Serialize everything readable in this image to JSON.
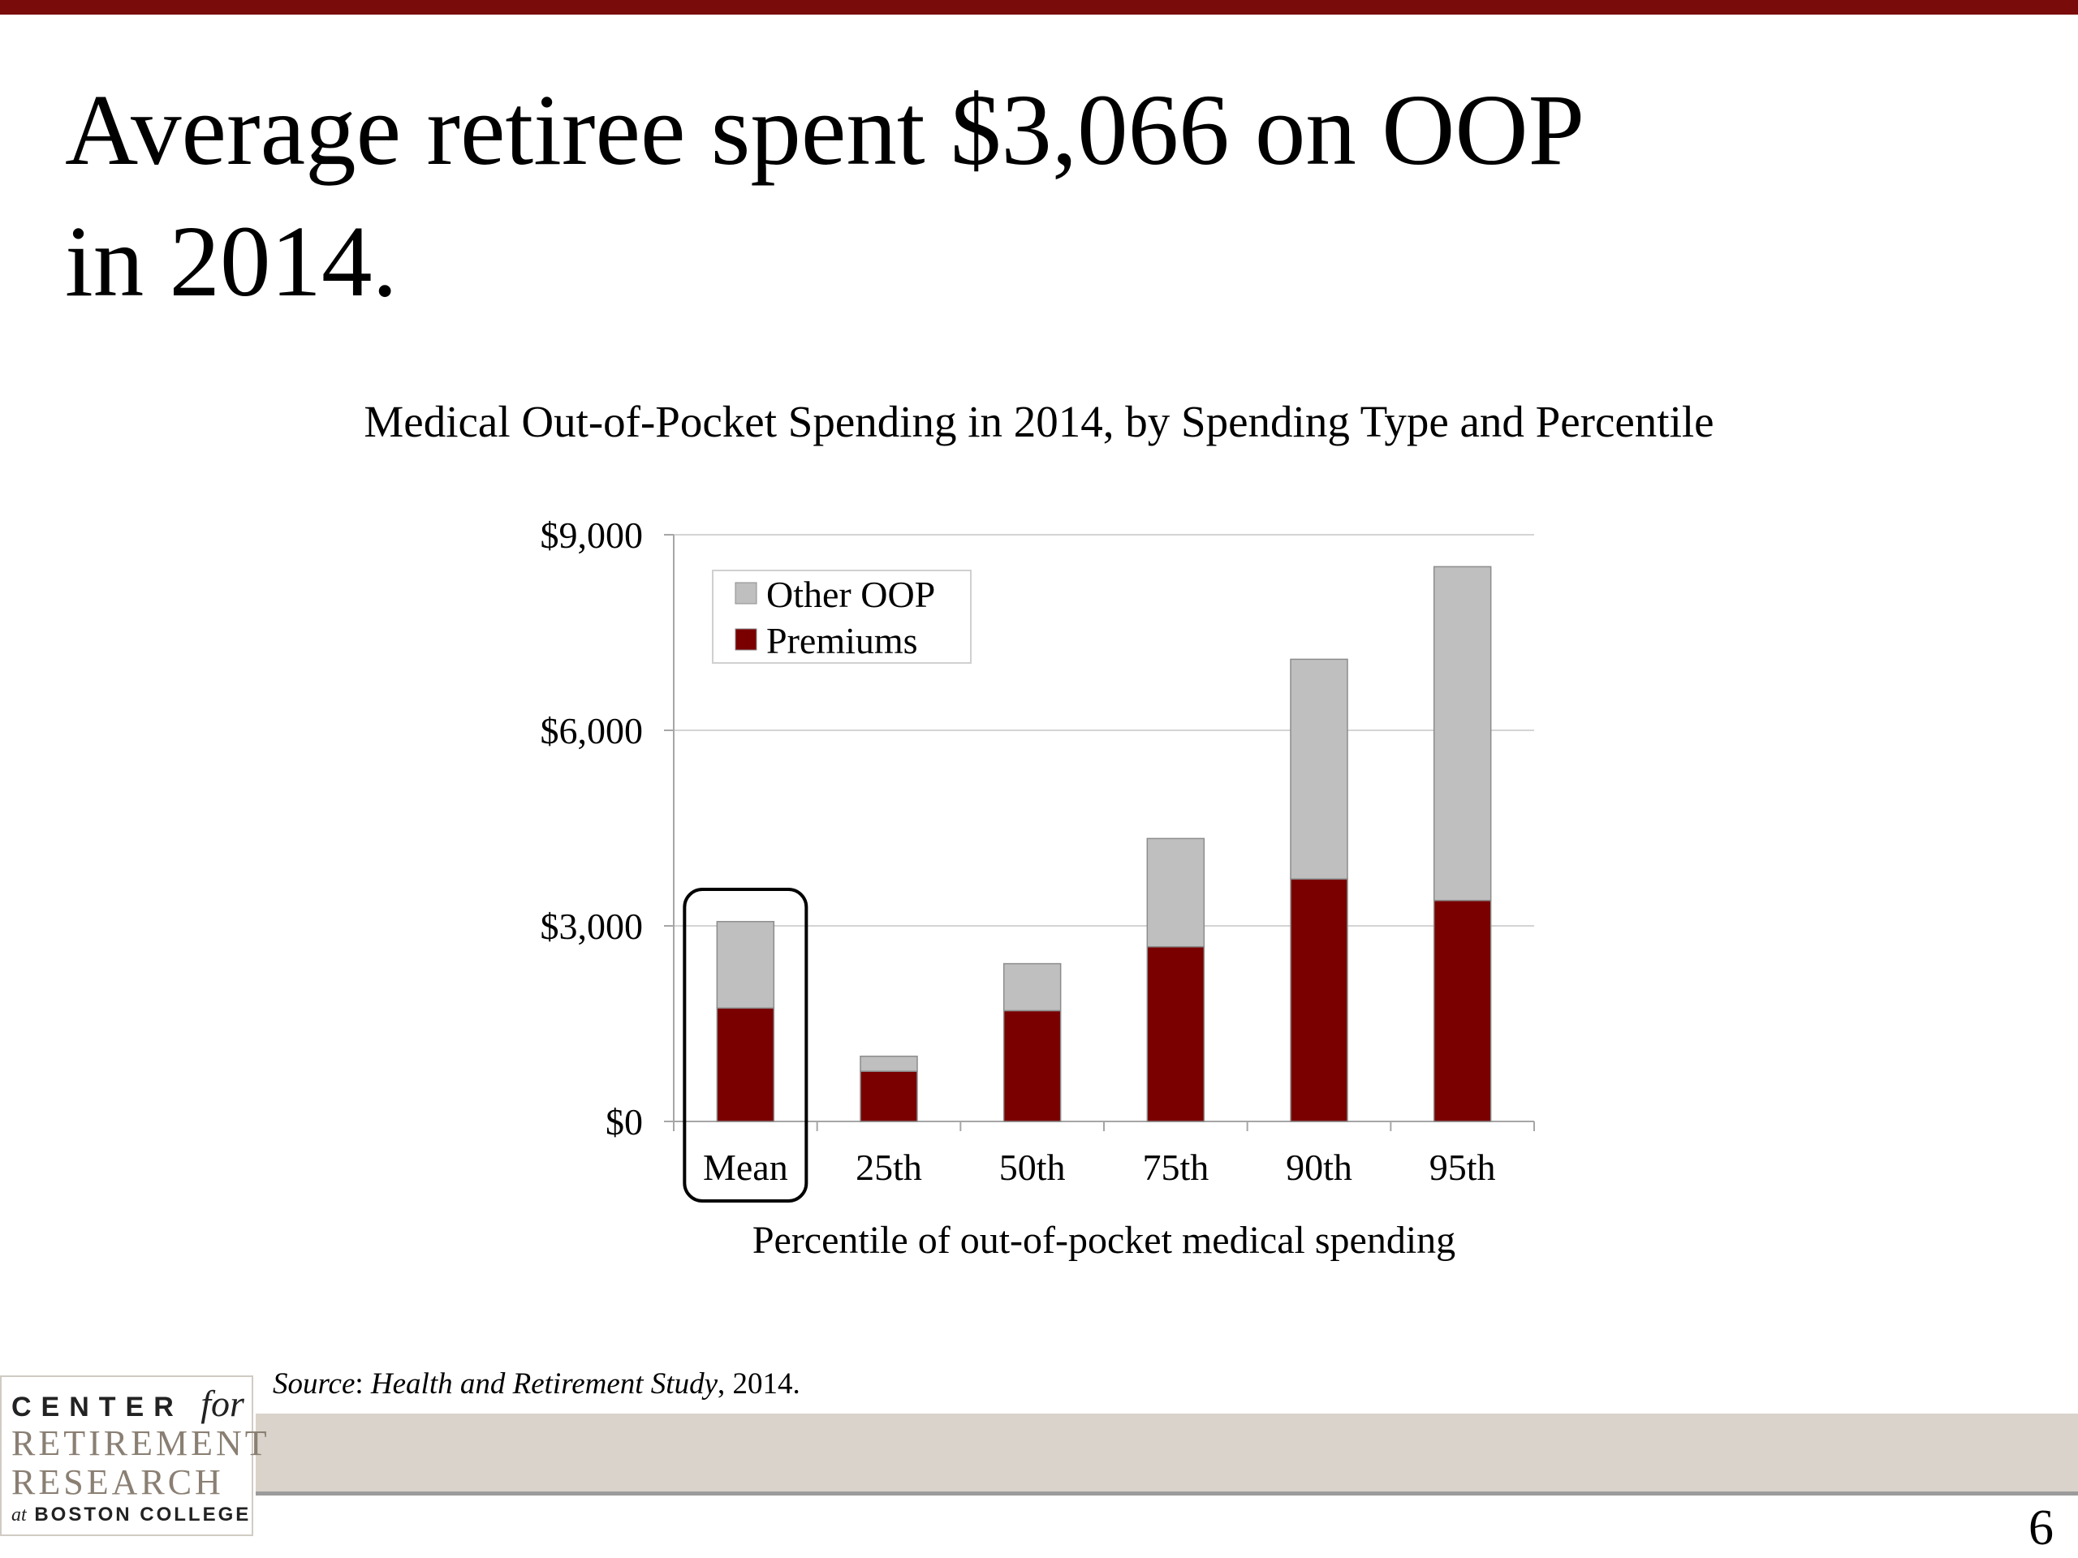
{
  "slide": {
    "title_line1": "Average retiree spent $3,066 on OOP",
    "title_line2": "in 2014.",
    "page_number": "6"
  },
  "source": {
    "label": "Source",
    "separator": ": ",
    "study": "Health and Retirement Study",
    "year_text": ", 2014."
  },
  "logo": {
    "line1_word": "CENTER",
    "line1_for": "for",
    "line2": "RETIREMENT",
    "line3": "RESEARCH",
    "line4_at": "at",
    "line4_rest": "BOSTON COLLEGE"
  },
  "colors": {
    "premiums": "#7a0000",
    "other_oop": "#bfbfbf",
    "accent_bar": "#7a0b0b",
    "footer_band": "#d9d3cb"
  },
  "chart_data": {
    "type": "bar",
    "stacked": true,
    "title": "Medical Out-of-Pocket Spending in 2014, by Spending Type and Percentile",
    "xlabel": "Percentile of out-of-pocket medical spending",
    "ylabel": "",
    "categories": [
      "Mean",
      "25th",
      "50th",
      "75th",
      "90th",
      "95th"
    ],
    "series": [
      {
        "name": "Premiums",
        "values": [
          1740,
          770,
          1700,
          2680,
          3720,
          3390
        ]
      },
      {
        "name": "Other OOP",
        "values": [
          1326,
          230,
          720,
          1660,
          3370,
          5120
        ]
      }
    ],
    "ylim": [
      0,
      9000
    ],
    "yticks": [
      0,
      3000,
      6000,
      9000
    ],
    "ytick_labels": [
      "$0",
      "$3,000",
      "$6,000",
      "$9,000"
    ],
    "grid": true,
    "legend_position": "top-left",
    "legend_order": [
      "Other OOP",
      "Premiums"
    ],
    "highlighted_category": "Mean"
  }
}
